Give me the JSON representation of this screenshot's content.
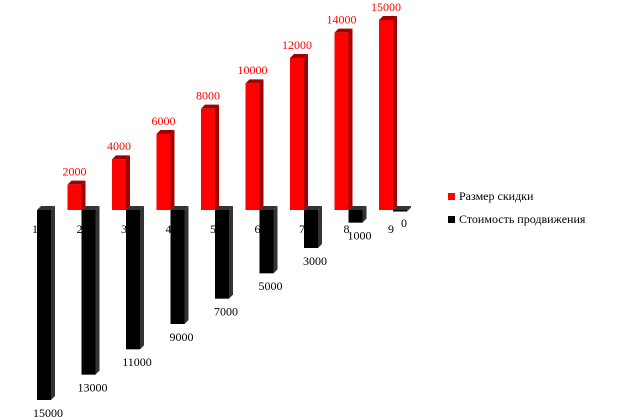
{
  "chart_data": {
    "type": "bar",
    "categories": [
      "1",
      "2",
      "3",
      "4",
      "5",
      "6",
      "7",
      "8",
      "9"
    ],
    "series": [
      {
        "name": "Размер  скидки",
        "color": "#ff0000",
        "label_color": "#ff0000",
        "values": [
          null,
          2000,
          4000,
          6000,
          8000,
          10000,
          12000,
          14000,
          15000
        ]
      },
      {
        "name": "Стоимость продвижения",
        "color": "#000000",
        "label_color": "#000000",
        "values": [
          -15000,
          -13000,
          -11000,
          -9000,
          -7000,
          -5000,
          -3000,
          -1000,
          0
        ],
        "value_labels": [
          "15000",
          "13000",
          "11000",
          "9000",
          "7000",
          "5000",
          "3000",
          "1000",
          "0"
        ]
      }
    ],
    "ylim": [
      -15000,
      15000
    ],
    "grid": false,
    "legend": "right"
  }
}
